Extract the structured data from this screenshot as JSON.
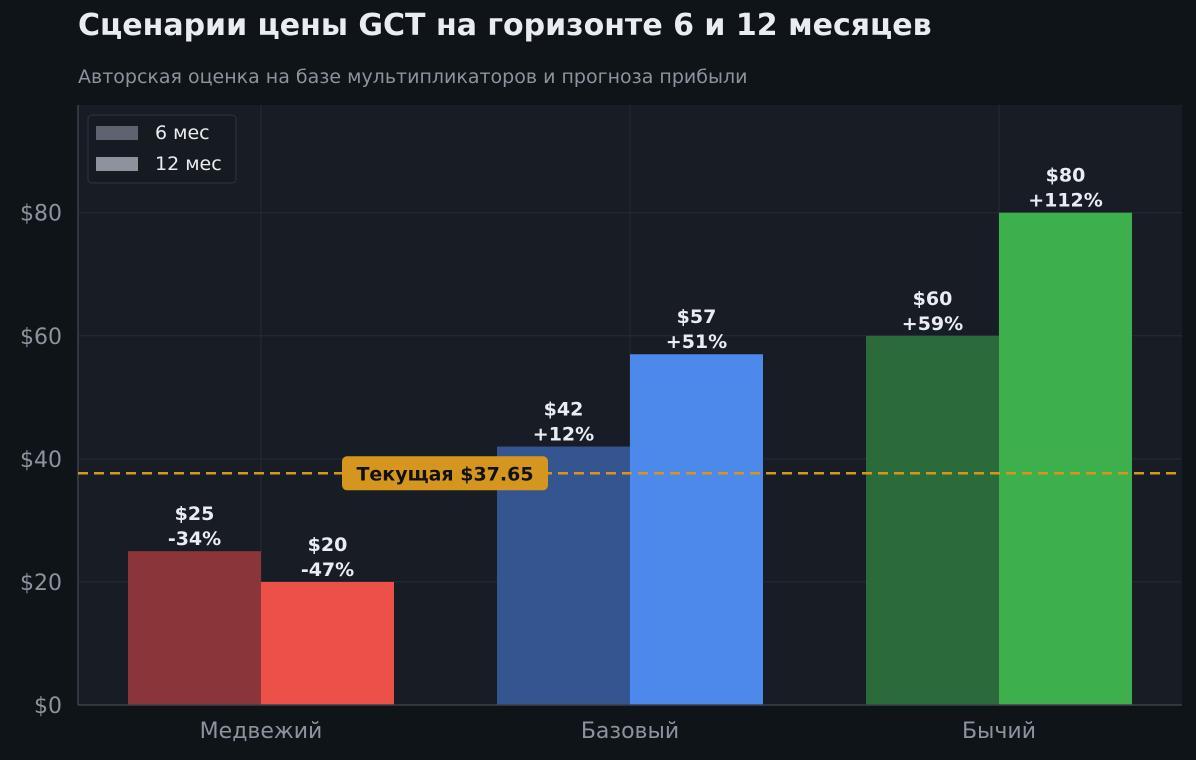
{
  "chart_data": {
    "type": "bar",
    "title": "Сценарии цены GCT на горизонте 6 и 12 месяцев",
    "subtitle": "Авторская оценка на базе мультипликаторов и прогноза прибыли",
    "categories": [
      "Медвежий",
      "Базовый",
      "Бычий"
    ],
    "series": [
      {
        "name": "6 мес",
        "values": [
          25,
          42,
          60
        ],
        "labels": [
          [
            "$25",
            "-34%"
          ],
          [
            "$42",
            "+12%"
          ],
          [
            "$60",
            "+59%"
          ]
        ],
        "colors": [
          "#8a3539",
          "#34558f",
          "#2b6b3b"
        ],
        "legend_color": "#5d6470"
      },
      {
        "name": "12 мес",
        "values": [
          20,
          57,
          80
        ],
        "labels": [
          [
            "$20",
            "-47%"
          ],
          [
            "$57",
            "+51%"
          ],
          [
            "$80",
            "+112%"
          ]
        ],
        "colors": [
          "#ec5048",
          "#4d88eb",
          "#3daf4c"
        ],
        "legend_color": "#8c939c"
      }
    ],
    "ylim": [
      0,
      97.5
    ],
    "yticks": [
      0,
      20,
      40,
      60,
      80
    ],
    "ytick_labels": [
      "$0",
      "$20",
      "$40",
      "$60",
      "$80"
    ],
    "grid": true,
    "legend_position": "top-left",
    "reference_line": {
      "value": 37.65,
      "label": "Текущая $37.65",
      "color": "#d4961e"
    },
    "colors": {
      "background": "#0f1419",
      "plot_background": "#181c24",
      "grid": "#262b35",
      "text": "#e9edf2",
      "muted_text": "#8b949e"
    }
  }
}
